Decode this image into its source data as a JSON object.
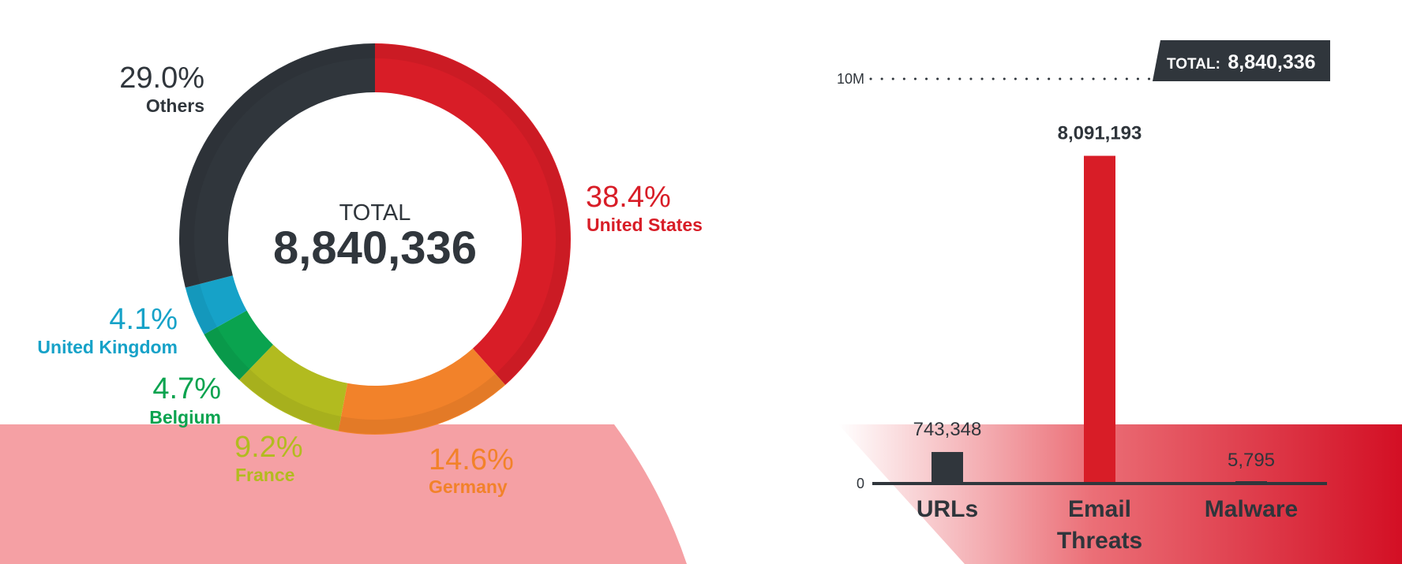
{
  "colors": {
    "red": "#d81d27",
    "dark": "#30363c",
    "orange": "#f2822a",
    "olive": "#b2bb1f",
    "green": "#0aa34f",
    "blue": "#16a2c8",
    "pink": "#f5a0a4"
  },
  "chart_data": [
    {
      "type": "pie",
      "center_label": "TOTAL",
      "center_value": "8,840,336",
      "slices": [
        {
          "name": "United States",
          "value": 38.4,
          "label": "38.4%",
          "color": "#d81d27"
        },
        {
          "name": "Germany",
          "value": 14.6,
          "label": "14.6%",
          "color": "#f2822a"
        },
        {
          "name": "France",
          "value": 9.2,
          "label": "9.2%",
          "color": "#b2bb1f"
        },
        {
          "name": "Belgium",
          "value": 4.7,
          "label": "4.7%",
          "color": "#0aa34f"
        },
        {
          "name": "United Kingdom",
          "value": 4.1,
          "label": "4.1%",
          "color": "#16a2c8"
        },
        {
          "name": "Others",
          "value": 29.0,
          "label": "29.0%",
          "color": "#30363c"
        }
      ]
    },
    {
      "type": "bar",
      "categories": [
        "URLs",
        "Email Threats",
        "Malware"
      ],
      "category_lines": [
        [
          "URLs"
        ],
        [
          "Email",
          "Threats"
        ],
        [
          "Malware"
        ]
      ],
      "values": [
        743348,
        8091193,
        5795
      ],
      "value_labels": [
        "743,348",
        "8,091,193",
        "5,795"
      ],
      "bar_colors": [
        "#30363c",
        "#d81d27",
        "#30363c"
      ],
      "ylim": [
        0,
        10000000
      ],
      "y_ticks": [
        {
          "value": 0,
          "label": "0"
        },
        {
          "value": 10000000,
          "label": "10M"
        }
      ],
      "total_label": "TOTAL:",
      "total_value": "8,840,336"
    }
  ]
}
